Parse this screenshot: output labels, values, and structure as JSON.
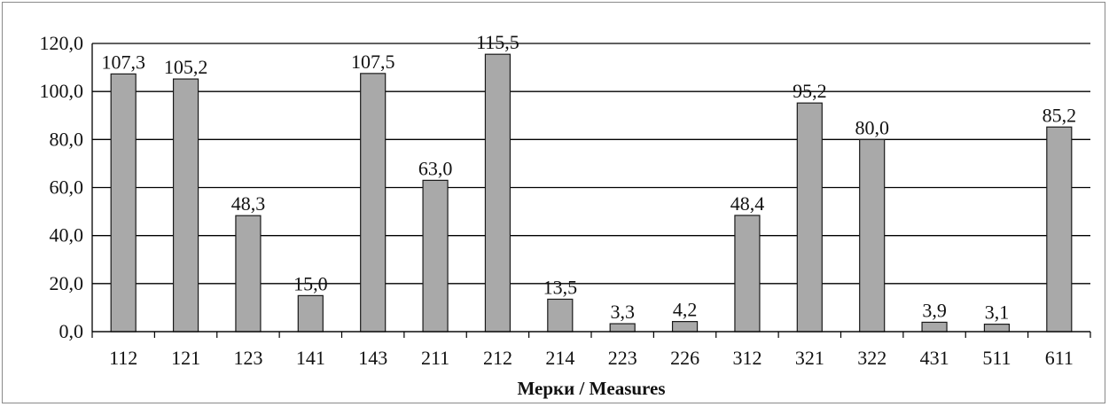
{
  "chart_data": {
    "type": "bar",
    "title": "",
    "xlabel": "Мерки / Measures",
    "ylabel": "",
    "ylim": [
      0,
      120
    ],
    "yticks": [
      0,
      20,
      40,
      60,
      80,
      100,
      120
    ],
    "ytick_labels": [
      "0,0",
      "20,0",
      "40,0",
      "60,0",
      "80,0",
      "100,0",
      "120,0"
    ],
    "grid": true,
    "legend": "none",
    "categories": [
      "112",
      "121",
      "123",
      "141",
      "143",
      "211",
      "212",
      "214",
      "223",
      "226",
      "312",
      "321",
      "322",
      "431",
      "511",
      "611"
    ],
    "values": [
      107.3,
      105.2,
      48.3,
      15.0,
      107.5,
      63.0,
      115.5,
      13.5,
      3.3,
      4.2,
      48.4,
      95.2,
      80.0,
      3.9,
      3.1,
      85.2
    ],
    "value_labels": [
      "107,3",
      "105,2",
      "48,3",
      "15,0",
      "107,5",
      "63,0",
      "115,5",
      "13,5",
      "3,3",
      "4,2",
      "48,4",
      "95,2",
      "80,0",
      "3,9",
      "3,1",
      "85,2"
    ],
    "colors": {
      "bar": "#a9a9a9",
      "bar_stroke": "#1a1a1a",
      "grid": "#000000"
    }
  }
}
